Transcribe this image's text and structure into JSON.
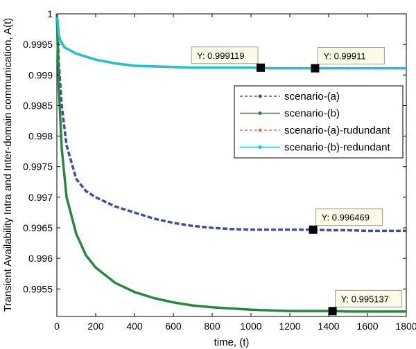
{
  "chart_data": {
    "type": "line",
    "xlabel": "time, (t)",
    "ylabel": "Transient Availability Intra and Inter-domain communication, A(t)",
    "xlim": [
      0,
      1800
    ],
    "ylim": [
      0.99505,
      1.0
    ],
    "xticks": [
      0,
      200,
      400,
      600,
      800,
      1000,
      1200,
      1400,
      1600,
      1800
    ],
    "yticks": [
      0.9955,
      0.996,
      0.9965,
      0.997,
      0.9975,
      0.998,
      0.9985,
      0.999,
      0.9995,
      1.0
    ],
    "ytick_labels": [
      "0.9955",
      "0.996",
      "0.9965",
      "0.997",
      "0.9975",
      "0.998",
      "0.9985",
      "0.999",
      "0.9995",
      "1"
    ],
    "grid": false,
    "legend_position": "right",
    "series": [
      {
        "name": "scenario-(a)",
        "color": "#3b4ea8",
        "line": "dashed",
        "marker": "dot",
        "x": [
          0,
          10,
          25,
          50,
          100,
          150,
          200,
          300,
          400,
          500,
          600,
          700,
          800,
          900,
          1000,
          1100,
          1200,
          1300,
          1400,
          1500,
          1600,
          1700,
          1800
        ],
        "y": [
          1.0,
          0.9992,
          0.9985,
          0.99785,
          0.9973,
          0.9971,
          0.997,
          0.99685,
          0.99675,
          0.99665,
          0.99658,
          0.99653,
          0.9965,
          0.99648,
          0.99647,
          0.99647,
          0.99647,
          0.99647,
          0.99646,
          0.99646,
          0.99645,
          0.99645,
          0.99645
        ]
      },
      {
        "name": "scenario-(b)",
        "color": "#238a3d",
        "line": "solid",
        "marker": "dot",
        "x": [
          0,
          10,
          25,
          50,
          100,
          150,
          200,
          300,
          400,
          500,
          600,
          700,
          800,
          900,
          1000,
          1100,
          1200,
          1300,
          1400,
          1500,
          1600,
          1700,
          1800
        ],
        "y": [
          1.0,
          0.9988,
          0.9978,
          0.997,
          0.9964,
          0.99605,
          0.99585,
          0.9956,
          0.99545,
          0.99535,
          0.99528,
          0.99523,
          0.9952,
          0.99518,
          0.99516,
          0.99515,
          0.99514,
          0.99514,
          0.99514,
          0.99513,
          0.99513,
          0.99513,
          0.99513
        ]
      },
      {
        "name": "scenario-(a)-rudundant",
        "color": "#e8735a",
        "line": "dashed",
        "marker": "dot",
        "x": [
          0,
          5,
          10,
          20,
          40,
          70,
          100,
          200,
          300,
          400,
          500,
          600,
          700,
          800,
          900,
          1000,
          1100,
          1200,
          1300,
          1400,
          1500,
          1600,
          1700,
          1800
        ],
        "y": [
          1.0,
          0.99985,
          0.99965,
          0.99955,
          0.99945,
          0.9994,
          0.99935,
          0.99925,
          0.99919,
          0.99915,
          0.99914,
          0.99913,
          0.99912,
          0.99912,
          0.99912,
          0.99912,
          0.99911,
          0.99911,
          0.99911,
          0.99911,
          0.99911,
          0.99911,
          0.99911,
          0.99911
        ]
      },
      {
        "name": "scenario-(b)-redundant",
        "color": "#1fc2cf",
        "line": "solid",
        "marker": "dot",
        "x": [
          0,
          5,
          10,
          20,
          40,
          70,
          100,
          200,
          300,
          400,
          500,
          600,
          700,
          800,
          900,
          1000,
          1100,
          1200,
          1300,
          1400,
          1500,
          1600,
          1700,
          1800
        ],
        "y": [
          1.0,
          0.99985,
          0.99965,
          0.99955,
          0.99945,
          0.9994,
          0.99935,
          0.99925,
          0.99919,
          0.99915,
          0.99914,
          0.99913,
          0.99912,
          0.99912,
          0.99912,
          0.99912,
          0.99911,
          0.99911,
          0.99911,
          0.99911,
          0.99911,
          0.99911,
          0.99911,
          0.99911
        ]
      }
    ],
    "datatips": [
      {
        "x": 1050,
        "y": 0.999119,
        "label": "Y: 0.999119",
        "side": "left"
      },
      {
        "x": 1330,
        "y": 0.99911,
        "label": "Y: 0.99911",
        "side": "right"
      },
      {
        "x": 1320,
        "y": 0.996469,
        "label": "Y: 0.996469",
        "side": "right"
      },
      {
        "x": 1420,
        "y": 0.995137,
        "label": "Y: 0.995137",
        "side": "right"
      }
    ]
  }
}
